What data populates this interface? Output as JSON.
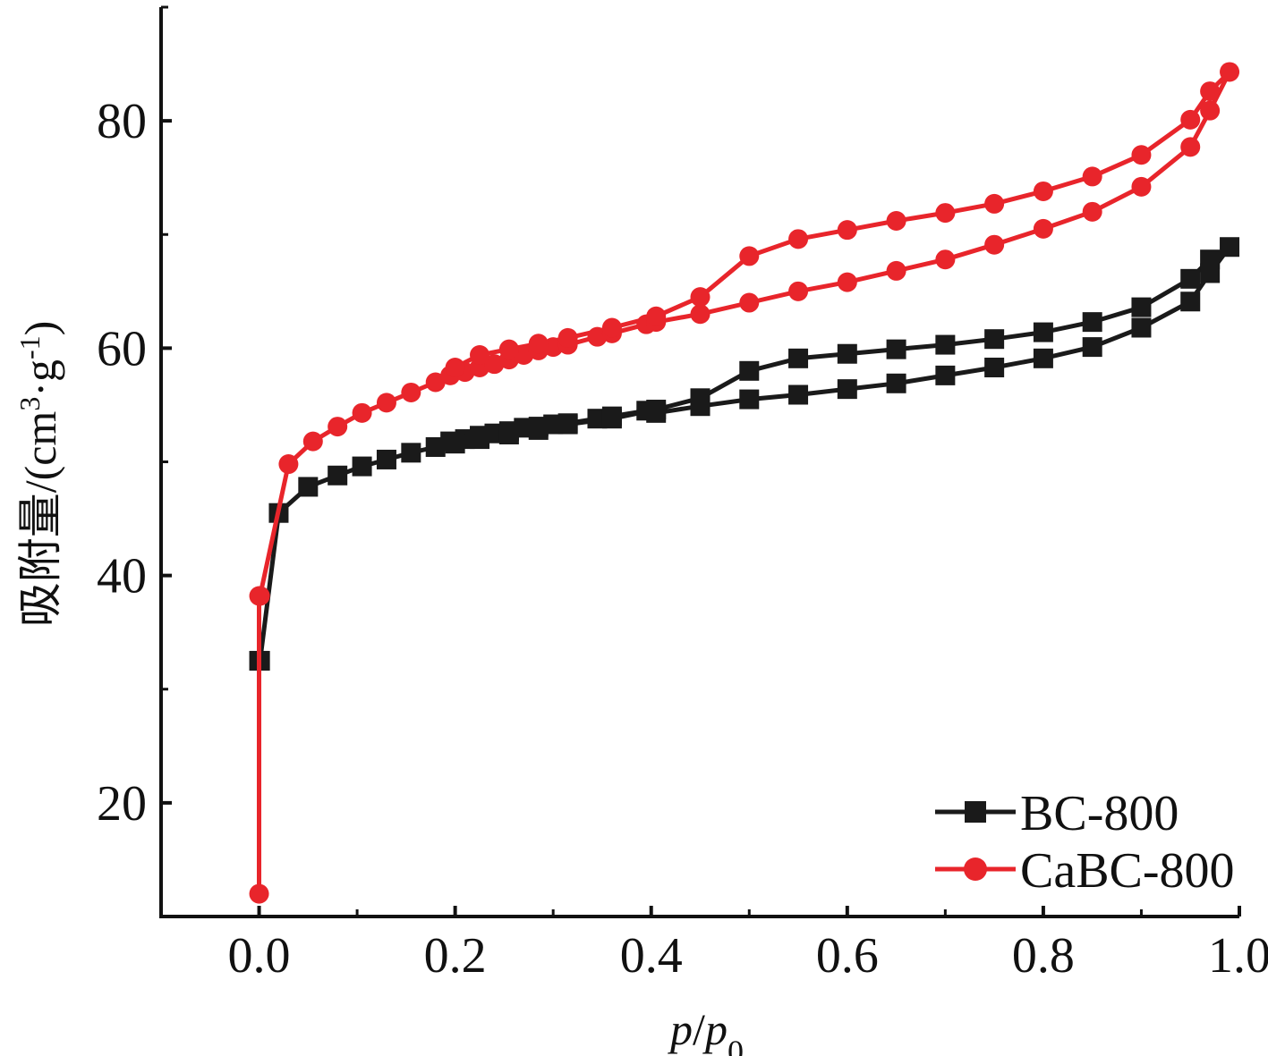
{
  "chart_data": {
    "type": "line",
    "xlabel": "p/p0",
    "xlabel_parts": {
      "p1": "p",
      "slash": "/",
      "p2": "p",
      "sub": "0"
    },
    "ylabel": "吸附量/(cm3·g-1)",
    "ylabel_parts": {
      "main": "吸附量/(cm",
      "sup1": "3",
      "mid": "·g",
      "sup2": "-1",
      "end": ")"
    },
    "xlim": [
      -0.1,
      1.0
    ],
    "ylim": [
      10,
      90
    ],
    "xticks": [
      "0.0",
      "0.2",
      "0.4",
      "0.6",
      "0.8",
      "1.0"
    ],
    "xtick_values": [
      0.0,
      0.2,
      0.4,
      0.6,
      0.8,
      1.0
    ],
    "yticks": [
      "20",
      "40",
      "60",
      "80"
    ],
    "ytick_values": [
      20,
      40,
      60,
      80
    ],
    "legend_position": "bottom-right",
    "series": [
      {
        "name": "BC-800",
        "color": "#1a1a1a",
        "marker": "square",
        "x": [
          0.0,
          0.001,
          0.02,
          0.05,
          0.08,
          0.105,
          0.13,
          0.155,
          0.18,
          0.195,
          0.21,
          0.225,
          0.24,
          0.255,
          0.27,
          0.285,
          0.3,
          0.315,
          0.345,
          0.36,
          0.395,
          0.405,
          0.45,
          0.5,
          0.55,
          0.6,
          0.65,
          0.7,
          0.75,
          0.8,
          0.85,
          0.9,
          0.95,
          0.97,
          0.99,
          0.97,
          0.95,
          0.9,
          0.85,
          0.8,
          0.75,
          0.7,
          0.65,
          0.6,
          0.55,
          0.5,
          0.45,
          0.405,
          0.36,
          0.315,
          0.285,
          0.255,
          0.225,
          0.2
        ],
        "y": [
          32.5,
          32.5,
          45.5,
          47.8,
          48.8,
          49.6,
          50.2,
          50.8,
          51.3,
          51.8,
          52.0,
          52.3,
          52.5,
          52.7,
          53.0,
          53.1,
          53.3,
          53.4,
          53.8,
          54.0,
          54.5,
          54.3,
          54.9,
          55.5,
          55.9,
          56.4,
          56.9,
          57.6,
          58.3,
          59.1,
          60.1,
          61.8,
          64.1,
          66.6,
          68.9,
          67.8,
          66.1,
          63.6,
          62.3,
          61.4,
          60.8,
          60.3,
          59.9,
          59.5,
          59.1,
          58.0,
          55.6,
          54.6,
          53.8,
          53.3,
          52.8,
          52.4,
          52.0,
          51.6
        ]
      },
      {
        "name": "CaBC-800",
        "color": "#e8252b",
        "marker": "circle",
        "x": [
          0.0,
          0.0,
          0.001,
          0.03,
          0.055,
          0.08,
          0.105,
          0.13,
          0.155,
          0.18,
          0.195,
          0.21,
          0.225,
          0.24,
          0.255,
          0.27,
          0.285,
          0.3,
          0.315,
          0.345,
          0.36,
          0.395,
          0.405,
          0.45,
          0.5,
          0.55,
          0.6,
          0.65,
          0.7,
          0.75,
          0.8,
          0.85,
          0.9,
          0.95,
          0.97,
          0.99,
          0.97,
          0.95,
          0.9,
          0.85,
          0.8,
          0.75,
          0.7,
          0.65,
          0.6,
          0.55,
          0.5,
          0.45,
          0.405,
          0.36,
          0.315,
          0.285,
          0.255,
          0.225,
          0.2
        ],
        "y": [
          12.0,
          38.2,
          38.2,
          49.8,
          51.8,
          53.1,
          54.3,
          55.2,
          56.1,
          57.0,
          57.6,
          57.9,
          58.3,
          58.6,
          59.0,
          59.4,
          59.8,
          60.1,
          60.3,
          61.0,
          61.3,
          62.1,
          62.3,
          63.0,
          64.0,
          65.0,
          65.8,
          66.8,
          67.8,
          69.1,
          70.5,
          72.0,
          74.2,
          77.7,
          80.9,
          84.3,
          82.6,
          80.1,
          77.0,
          75.1,
          73.8,
          72.7,
          71.9,
          71.2,
          70.4,
          69.6,
          68.1,
          64.5,
          62.8,
          61.8,
          60.9,
          60.4,
          59.9,
          59.4,
          58.3
        ]
      }
    ]
  }
}
